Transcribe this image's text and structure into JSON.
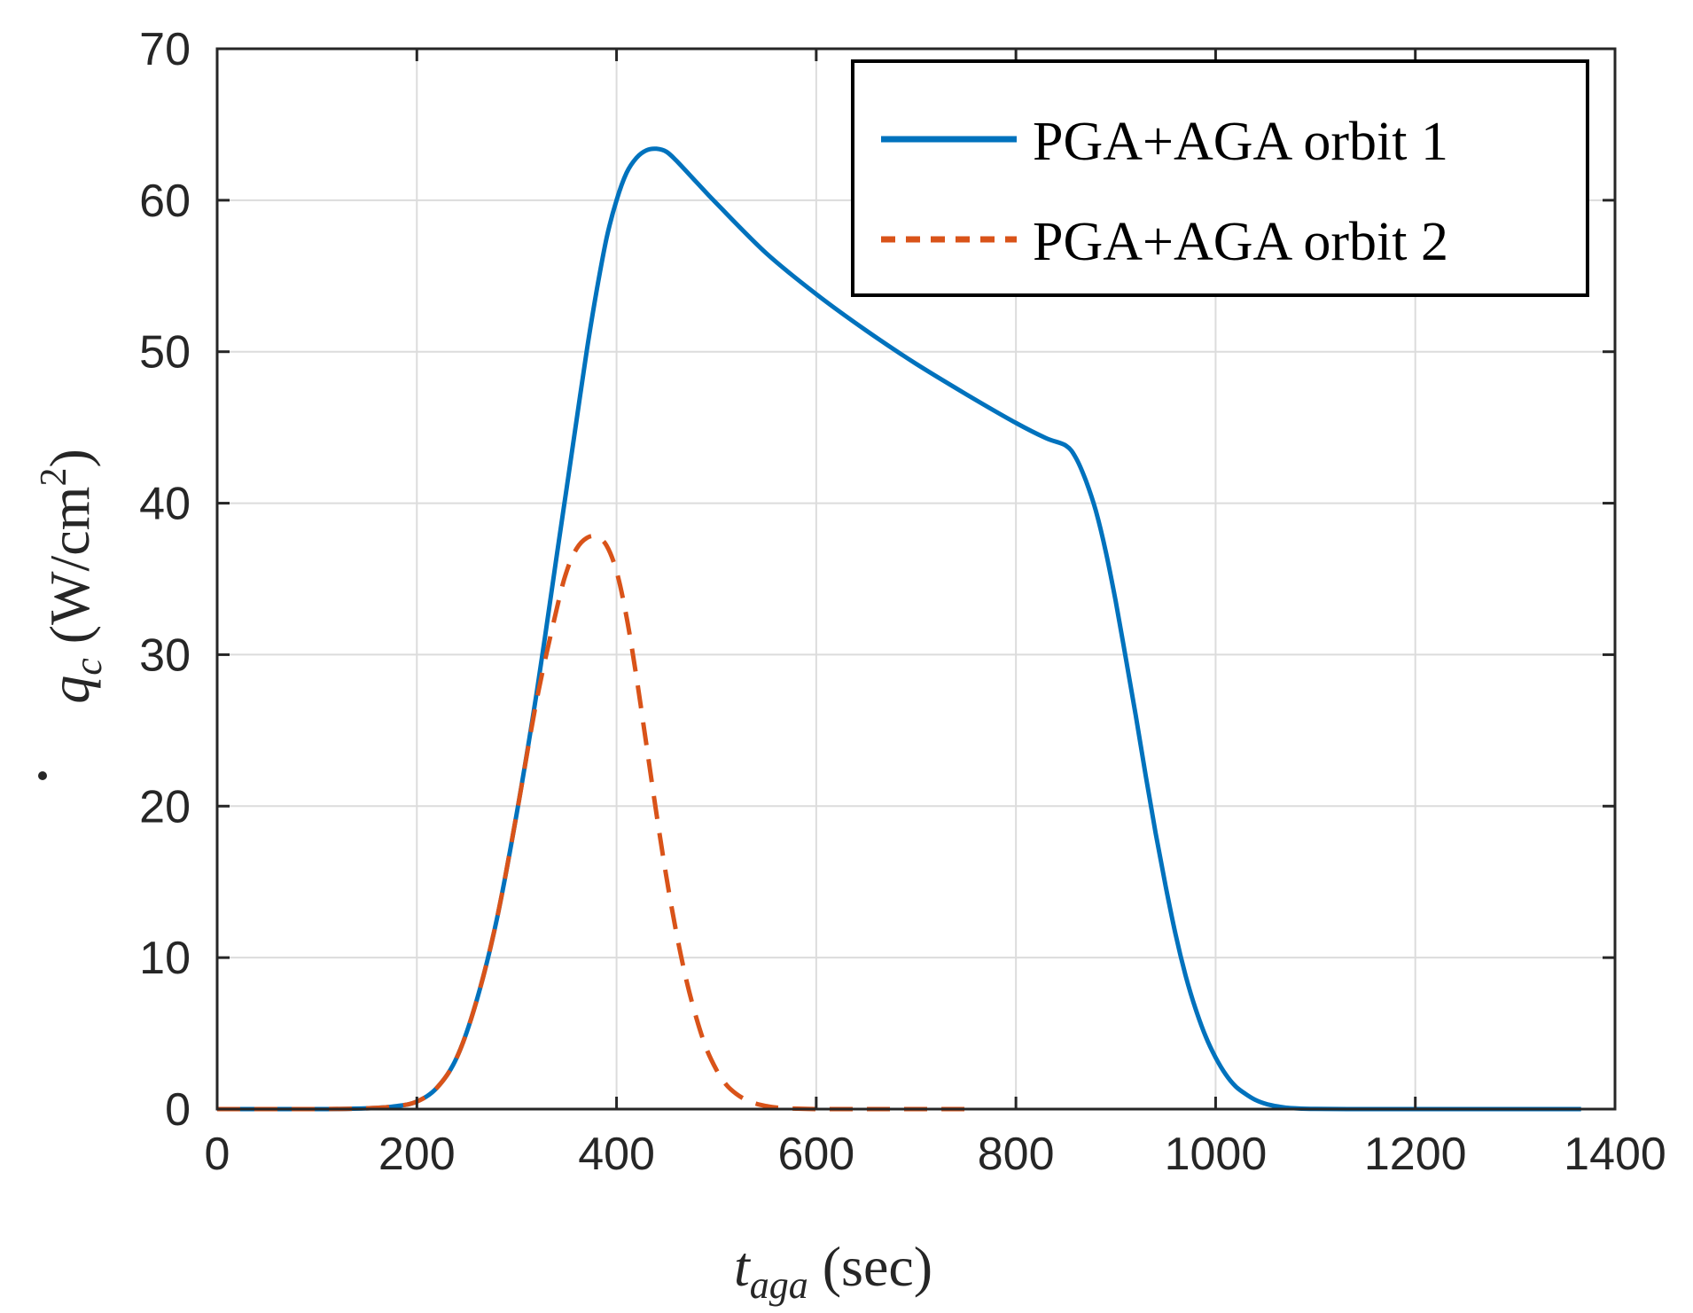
{
  "chart_data": {
    "type": "line",
    "title": "",
    "xlabel": {
      "base": "t",
      "subscript": "aga",
      "unit": "(sec)"
    },
    "ylabel": {
      "base": "q",
      "subscript": "c",
      "unit": "(W/cm",
      "unit_sup": "2",
      "unit_close": ")"
    },
    "xlim": [
      0,
      1400
    ],
    "ylim": [
      0,
      70
    ],
    "xticks": [
      0,
      200,
      400,
      600,
      800,
      1000,
      1200,
      1400
    ],
    "yticks": [
      0,
      10,
      20,
      30,
      40,
      50,
      60,
      70
    ],
    "grid": true,
    "legend_position": "top-right",
    "series": [
      {
        "name": "PGA+AGA orbit 1",
        "color": "#0072BD",
        "style": "solid",
        "x": [
          0,
          100,
          150,
          180,
          200,
          220,
          240,
          260,
          280,
          300,
          320,
          340,
          350,
          360,
          370,
          380,
          390,
          400,
          410,
          420,
          430,
          440,
          450,
          460,
          480,
          500,
          550,
          600,
          650,
          700,
          750,
          800,
          830,
          850,
          860,
          870,
          880,
          890,
          900,
          910,
          920,
          930,
          940,
          950,
          960,
          970,
          980,
          990,
          1000,
          1010,
          1020,
          1030,
          1040,
          1050,
          1060,
          1070,
          1080,
          1100,
          1150,
          1200,
          1300,
          1366
        ],
        "y": [
          0,
          0,
          0.05,
          0.2,
          0.5,
          1.4,
          3.4,
          7.2,
          12.5,
          19.5,
          27.5,
          36.5,
          41.0,
          45.5,
          50.0,
          54.0,
          57.5,
          60.0,
          61.8,
          62.8,
          63.3,
          63.4,
          63.2,
          62.6,
          61.2,
          59.8,
          56.5,
          53.8,
          51.4,
          49.2,
          47.2,
          45.3,
          44.3,
          43.8,
          43.0,
          41.5,
          39.5,
          36.8,
          33.5,
          29.8,
          26.0,
          22.0,
          18.2,
          14.7,
          11.5,
          8.8,
          6.6,
          4.8,
          3.4,
          2.3,
          1.5,
          1.0,
          0.6,
          0.35,
          0.2,
          0.1,
          0.05,
          0.01,
          0,
          0,
          0,
          0
        ]
      },
      {
        "name": "PGA+AGA orbit 2",
        "color": "#D95319",
        "style": "dashed",
        "x": [
          0,
          100,
          150,
          180,
          200,
          220,
          240,
          260,
          280,
          300,
          320,
          340,
          350,
          360,
          370,
          380,
          390,
          400,
          410,
          420,
          430,
          440,
          450,
          460,
          470,
          480,
          490,
          500,
          510,
          520,
          530,
          540,
          550,
          560,
          580,
          600,
          650,
          700,
          750
        ],
        "y": [
          0,
          0,
          0.05,
          0.2,
          0.5,
          1.4,
          3.4,
          7.2,
          12.5,
          19.5,
          27.0,
          33.0,
          35.5,
          37.0,
          37.7,
          37.8,
          37.2,
          35.5,
          32.5,
          28.5,
          24.0,
          19.5,
          15.3,
          11.6,
          8.5,
          6.0,
          4.0,
          2.6,
          1.6,
          1.0,
          0.6,
          0.35,
          0.2,
          0.1,
          0.03,
          0,
          0,
          0,
          0
        ]
      }
    ]
  }
}
